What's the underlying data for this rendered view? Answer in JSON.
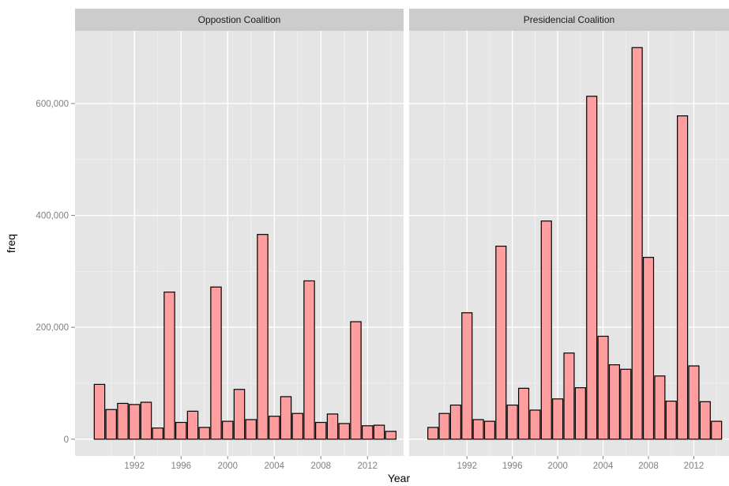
{
  "colors": {
    "panel_background": "#E5E5E5",
    "strip_background": "#CCCCCC",
    "grid_major": "#FFFFFF",
    "grid_minor": "#F2F2F2",
    "bar_fill": "#FF9E9E",
    "bar_stroke": "#000000"
  },
  "chart_data": {
    "type": "bar",
    "faceted": true,
    "xlabel": "Year",
    "ylabel": "freq",
    "x_ticks": [
      1992,
      1996,
      2000,
      2004,
      2008,
      2012
    ],
    "y_ticks": [
      0,
      200000,
      400000,
      600000
    ],
    "y_tick_labels": [
      "0",
      "200,000",
      "400,000",
      "600,000"
    ],
    "ylim": [
      -30000,
      730000
    ],
    "xlim": [
      1986.9,
      2015.1
    ],
    "grid": true,
    "panels": [
      {
        "title": "Oppostion Coalition",
        "years": [
          1989,
          1990,
          1991,
          1992,
          1993,
          1994,
          1995,
          1996,
          1997,
          1998,
          1999,
          2000,
          2001,
          2002,
          2003,
          2004,
          2005,
          2006,
          2007,
          2008,
          2009,
          2010,
          2011,
          2012,
          2013,
          2014
        ],
        "values": [
          98000,
          53000,
          64000,
          62000,
          66000,
          20000,
          263000,
          30000,
          50000,
          21000,
          272000,
          32000,
          89000,
          35000,
          366000,
          41000,
          76000,
          46000,
          283000,
          30000,
          45000,
          28000,
          210000,
          24000,
          25000,
          14000
        ]
      },
      {
        "title": "Presidencial Coalition",
        "years": [
          1989,
          1990,
          1991,
          1992,
          1993,
          1994,
          1995,
          1996,
          1997,
          1998,
          1999,
          2000,
          2001,
          2002,
          2003,
          2004,
          2005,
          2006,
          2007,
          2008,
          2009,
          2010,
          2011,
          2012,
          2013,
          2014
        ],
        "values": [
          21000,
          46000,
          61000,
          226000,
          35000,
          32000,
          345000,
          61000,
          91000,
          52000,
          390000,
          72000,
          154000,
          92000,
          613000,
          184000,
          133000,
          125000,
          700000,
          325000,
          113000,
          68000,
          578000,
          131000,
          67000,
          32000
        ]
      }
    ]
  }
}
